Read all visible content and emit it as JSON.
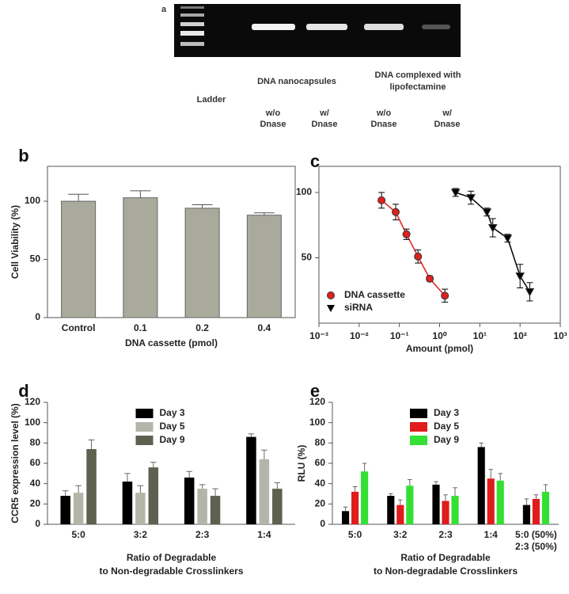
{
  "gel": {
    "panel": "a",
    "ladder": "Ladder",
    "groups": [
      "DNA nanocapsules",
      [
        "DNA complexed with",
        "lipofectamine"
      ]
    ],
    "lanes": [
      [
        "w/o",
        "Dnase"
      ],
      [
        "w/",
        "Dnase"
      ],
      [
        "w/o",
        "Dnase"
      ],
      [
        "w/",
        "Dnase"
      ]
    ]
  },
  "chart_data": [
    {
      "panel": "b",
      "type": "bar",
      "categories": [
        "Control",
        "0.1",
        "0.2",
        "0.4"
      ],
      "series": [
        {
          "color": "#a9aa9b",
          "values": [
            100,
            103,
            94,
            88
          ],
          "errors": [
            6,
            6,
            3,
            2
          ]
        }
      ],
      "ylim": [
        0,
        130
      ],
      "yticks": [
        0,
        50,
        100
      ],
      "ylabel": "Cell Viability (%)",
      "xlabel": "DNA cassette (pmol)"
    },
    {
      "panel": "c",
      "type": "scatter",
      "xscale": "log",
      "xlim": [
        0.001,
        1000
      ],
      "xticks": [
        {
          "value": 0.001,
          "label": "10⁻³"
        },
        {
          "value": 0.01,
          "label": "10⁻²"
        },
        {
          "value": 0.1,
          "label": "10⁻¹"
        },
        {
          "value": 1,
          "label": "10⁰"
        },
        {
          "value": 10,
          "label": "10¹"
        },
        {
          "value": 100,
          "label": "10²"
        },
        {
          "value": 1000,
          "label": "10³"
        }
      ],
      "ylim": [
        0,
        120
      ],
      "yticks": [
        50,
        100
      ],
      "xlabel": "Amount (pmol)",
      "legend": "lower left",
      "series": [
        {
          "name": "DNA cassette",
          "color": "#e0211d",
          "marker": "circle",
          "line": true,
          "x": [
            0.036,
            0.081,
            0.15,
            0.29,
            0.57,
            1.35
          ],
          "values": [
            94,
            85,
            68,
            51,
            34,
            21
          ],
          "errors": [
            6,
            6,
            4,
            5,
            2,
            5
          ]
        },
        {
          "name": "siRNA",
          "color": "#000000",
          "marker": "triangle-down",
          "line": true,
          "x": [
            2.5,
            6,
            15,
            21,
            49,
            100,
            174
          ],
          "values": [
            100,
            96,
            85,
            73,
            65,
            36,
            24
          ],
          "errors": [
            3,
            5,
            3,
            7,
            3,
            9,
            7
          ]
        }
      ]
    },
    {
      "panel": "d",
      "type": "bar",
      "categories": [
        "5:0",
        "3:2",
        "2:3",
        "1:4"
      ],
      "series": [
        {
          "name": "Day 3",
          "color": "#000000",
          "values": [
            28,
            42,
            46,
            86
          ],
          "errors": [
            5,
            8,
            6,
            3
          ]
        },
        {
          "name": "Day 5",
          "color": "#b2b5a8",
          "values": [
            31,
            31,
            35,
            64
          ],
          "errors": [
            7,
            7,
            4,
            9
          ]
        },
        {
          "name": "Day 9",
          "color": "#5d6150",
          "values": [
            74,
            56,
            28,
            35
          ],
          "errors": [
            9,
            5,
            7,
            6
          ]
        }
      ],
      "ylim": [
        0,
        120
      ],
      "yticks": [
        0,
        20,
        40,
        60,
        80,
        100,
        120
      ],
      "legend": "upper center",
      "ylabel": "CCR5 expression level (%)",
      "xlabel": [
        "Ratio of Degradable",
        "to Non-degradable Crosslinkers"
      ]
    },
    {
      "panel": "e",
      "type": "bar",
      "categories": [
        "5:0",
        "3:2",
        "2:3",
        "1:4",
        [
          "5:0 (50%)",
          "2:3 (50%)"
        ]
      ],
      "series": [
        {
          "name": "Day 3",
          "color": "#000000",
          "values": [
            13,
            28,
            39,
            76,
            19
          ],
          "errors": [
            4,
            2,
            3,
            4,
            6
          ]
        },
        {
          "name": "Day 5",
          "color": "#e01c1c",
          "values": [
            32,
            19,
            23,
            45,
            25
          ],
          "errors": [
            5,
            5,
            6,
            9,
            4
          ]
        },
        {
          "name": "Day 9",
          "color": "#33e033",
          "values": [
            52,
            38,
            28,
            43,
            32
          ],
          "errors": [
            8,
            6,
            8,
            7,
            7
          ]
        }
      ],
      "ylim": [
        0,
        120
      ],
      "yticks": [
        0,
        20,
        40,
        60,
        80,
        100,
        120
      ],
      "legend": "upper center",
      "ylabel": "RLU (%)",
      "xlabel": [
        "Ratio of Degradable",
        "to Non-degradable Crosslinkers"
      ]
    }
  ]
}
